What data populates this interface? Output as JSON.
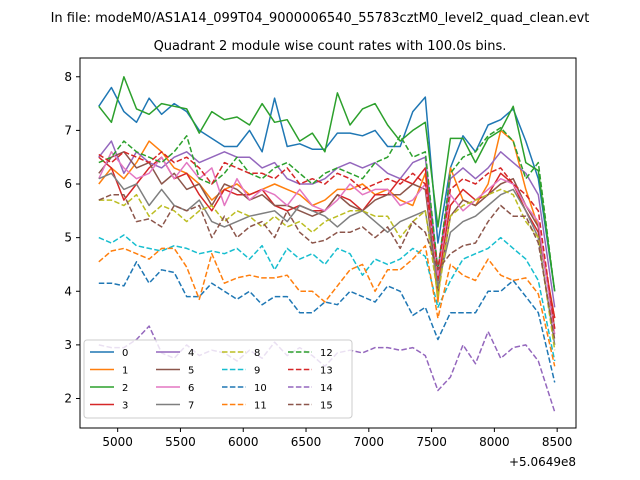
{
  "figure": {
    "suptitle": "In file: modeM0/AS1A14_099T04_9000006540_55783cztM0_level2_quad_clean.evt",
    "offset_label": "+5.0649e8"
  },
  "chart_data": {
    "type": "line",
    "title": "Quadrant 2 module wise count rates with 100.0s bins.",
    "xlabel": "",
    "ylabel": "",
    "xlim": [
      4700,
      8650
    ],
    "ylim": [
      1.45,
      8.35
    ],
    "x_ticks": [
      5000,
      5500,
      6000,
      6500,
      7000,
      7500,
      8000,
      8500
    ],
    "x_tick_labels": [
      "5000",
      "5500",
      "6000",
      "6500",
      "7000",
      "7500",
      "8000",
      "8500"
    ],
    "y_ticks": [
      2,
      3,
      4,
      5,
      6,
      7,
      8
    ],
    "y_tick_labels": [
      "2",
      "3",
      "4",
      "5",
      "6",
      "7",
      "8"
    ],
    "x": [
      4850,
      4950,
      5050,
      5150,
      5250,
      5350,
      5450,
      5550,
      5650,
      5750,
      5850,
      5950,
      6050,
      6150,
      6250,
      6350,
      6450,
      6550,
      6650,
      6750,
      6850,
      6950,
      7050,
      7150,
      7250,
      7350,
      7450,
      7550,
      7650,
      7750,
      7850,
      7950,
      8050,
      8150,
      8250,
      8350,
      8480
    ],
    "legend": {
      "location": "lower-left",
      "ncol": 4
    },
    "series": [
      {
        "name": "0",
        "color": "#1f77b4",
        "dash": "solid",
        "values": [
          7.45,
          7.8,
          7.35,
          7.15,
          7.6,
          7.3,
          7.5,
          7.35,
          7.0,
          6.85,
          6.7,
          6.7,
          7.0,
          6.6,
          7.6,
          6.7,
          6.75,
          6.65,
          6.65,
          6.95,
          6.95,
          6.9,
          7.0,
          6.7,
          6.7,
          7.35,
          7.62,
          4.9,
          6.3,
          6.9,
          6.6,
          7.1,
          7.2,
          7.4,
          6.8,
          6.1,
          4.0
        ]
      },
      {
        "name": "1",
        "color": "#ff7f0e",
        "dash": "solid",
        "values": [
          6.0,
          6.3,
          6.1,
          6.4,
          6.8,
          6.6,
          6.3,
          6.2,
          6.0,
          5.7,
          5.9,
          6.0,
          5.8,
          5.9,
          6.0,
          5.9,
          5.8,
          5.6,
          5.7,
          5.9,
          5.9,
          6.0,
          5.8,
          5.9,
          5.7,
          5.6,
          6.2,
          3.8,
          6.3,
          5.7,
          5.6,
          6.0,
          7.0,
          6.8,
          5.9,
          5.2,
          3.5
        ]
      },
      {
        "name": "2",
        "color": "#2ca02c",
        "dash": "solid",
        "values": [
          7.45,
          7.15,
          8.0,
          7.4,
          7.3,
          7.5,
          7.45,
          7.4,
          6.95,
          7.35,
          7.2,
          7.25,
          7.1,
          7.5,
          7.15,
          7.2,
          6.8,
          6.95,
          6.6,
          7.7,
          7.1,
          7.4,
          7.5,
          7.1,
          6.8,
          7.0,
          7.15,
          5.2,
          6.85,
          6.85,
          6.4,
          6.85,
          7.0,
          7.45,
          6.4,
          6.25,
          4.0
        ]
      },
      {
        "name": "3",
        "color": "#d62728",
        "dash": "solid",
        "values": [
          6.5,
          6.3,
          5.7,
          6.0,
          6.3,
          6.5,
          6.1,
          6.2,
          5.8,
          5.5,
          5.9,
          5.8,
          5.8,
          5.9,
          5.6,
          5.5,
          5.6,
          5.5,
          5.5,
          5.8,
          5.7,
          5.5,
          5.8,
          5.8,
          6.1,
          6.0,
          6.3,
          4.2,
          5.6,
          5.9,
          5.7,
          5.8,
          6.2,
          6.0,
          5.5,
          5.1,
          3.5
        ]
      },
      {
        "name": "4",
        "color": "#9467bd",
        "dash": "solid",
        "values": [
          6.5,
          6.8,
          6.2,
          6.6,
          6.4,
          6.3,
          6.5,
          6.6,
          6.4,
          6.5,
          6.6,
          6.5,
          6.5,
          6.3,
          6.4,
          6.1,
          6.0,
          6.0,
          6.1,
          6.3,
          6.4,
          6.3,
          6.4,
          6.2,
          6.1,
          6.4,
          6.5,
          4.4,
          6.1,
          6.3,
          6.1,
          6.3,
          6.6,
          6.4,
          6.2,
          5.8,
          3.7
        ]
      },
      {
        "name": "5",
        "color": "#8c564b",
        "dash": "solid",
        "values": [
          6.2,
          6.5,
          6.6,
          6.3,
          6.4,
          6.0,
          6.2,
          5.9,
          6.0,
          5.6,
          6.0,
          5.9,
          5.7,
          5.8,
          5.6,
          5.6,
          5.5,
          5.4,
          5.5,
          5.8,
          5.6,
          5.5,
          5.7,
          5.8,
          5.8,
          6.0,
          5.9,
          4.0,
          5.4,
          5.7,
          5.6,
          5.8,
          6.0,
          6.1,
          5.6,
          5.2,
          3.3
        ]
      },
      {
        "name": "6",
        "color": "#e377c2",
        "dash": "solid",
        "values": [
          6.1,
          6.6,
          6.3,
          6.1,
          6.2,
          6.5,
          6.1,
          6.4,
          6.1,
          6.3,
          5.6,
          6.1,
          5.7,
          5.9,
          5.8,
          5.6,
          5.9,
          5.6,
          5.5,
          5.7,
          6.0,
          5.8,
          5.9,
          5.9,
          5.6,
          5.7,
          6.0,
          4.3,
          5.8,
          5.5,
          5.7,
          5.9,
          6.1,
          6.0,
          5.6,
          5.3,
          3.2
        ]
      },
      {
        "name": "7",
        "color": "#7f7f7f",
        "dash": "solid",
        "values": [
          6.1,
          6.2,
          5.9,
          6.0,
          5.6,
          5.9,
          5.6,
          5.5,
          5.7,
          5.3,
          5.2,
          5.3,
          5.4,
          5.45,
          5.5,
          5.3,
          5.6,
          5.5,
          5.4,
          5.2,
          5.4,
          5.5,
          5.3,
          5.1,
          5.3,
          5.4,
          5.5,
          4.1,
          5.1,
          5.3,
          5.4,
          5.6,
          5.8,
          5.9,
          5.5,
          5.0,
          3.0
        ]
      },
      {
        "name": "8",
        "color": "#bcbd22",
        "dash": "dashed",
        "values": [
          5.7,
          5.7,
          5.6,
          5.8,
          5.4,
          5.6,
          5.5,
          5.3,
          5.5,
          5.6,
          5.3,
          5.5,
          5.4,
          5.2,
          5.4,
          5.2,
          5.3,
          5.1,
          5.3,
          5.4,
          5.5,
          5.5,
          5.4,
          5.4,
          5.0,
          5.3,
          5.5,
          3.9,
          5.4,
          5.6,
          5.7,
          5.8,
          5.9,
          5.8,
          5.3,
          5.0,
          2.9
        ]
      },
      {
        "name": "9",
        "color": "#17becf",
        "dash": "dashed",
        "values": [
          5.0,
          4.9,
          5.05,
          4.85,
          4.8,
          4.75,
          4.85,
          4.8,
          4.7,
          4.75,
          4.7,
          4.8,
          4.6,
          4.85,
          4.4,
          4.8,
          4.6,
          4.7,
          4.5,
          4.8,
          4.7,
          4.3,
          4.6,
          4.5,
          4.6,
          4.8,
          4.65,
          3.7,
          4.2,
          4.6,
          4.7,
          4.8,
          5.0,
          4.8,
          4.6,
          4.2,
          2.7
        ]
      },
      {
        "name": "10",
        "color": "#1f77b4",
        "dash": "dashed",
        "values": [
          4.15,
          4.15,
          4.1,
          4.55,
          4.15,
          4.4,
          4.35,
          3.9,
          3.9,
          4.15,
          4.0,
          3.85,
          4.0,
          3.75,
          3.9,
          3.9,
          3.6,
          3.6,
          3.8,
          3.75,
          4.0,
          3.9,
          3.8,
          4.1,
          4.0,
          3.55,
          3.7,
          3.1,
          3.6,
          3.6,
          3.6,
          4.0,
          4.0,
          4.2,
          3.9,
          3.6,
          2.3
        ]
      },
      {
        "name": "11",
        "color": "#ff7f0e",
        "dash": "dashed",
        "values": [
          4.55,
          4.75,
          4.8,
          4.7,
          4.6,
          4.8,
          4.8,
          4.45,
          3.85,
          4.7,
          4.15,
          4.25,
          4.3,
          4.25,
          4.25,
          4.3,
          4.0,
          4.0,
          3.8,
          4.1,
          4.4,
          4.5,
          4.0,
          4.4,
          4.4,
          4.6,
          4.85,
          3.5,
          4.5,
          4.3,
          4.2,
          4.6,
          4.3,
          4.2,
          4.25,
          3.95,
          2.6
        ]
      },
      {
        "name": "12",
        "color": "#2ca02c",
        "dash": "dashed",
        "values": [
          6.4,
          6.5,
          6.8,
          6.6,
          6.5,
          6.4,
          6.6,
          6.9,
          6.1,
          6.0,
          6.2,
          6.5,
          6.2,
          6.1,
          6.3,
          6.4,
          6.2,
          6.0,
          6.2,
          6.3,
          6.2,
          6.1,
          6.4,
          6.5,
          6.9,
          6.5,
          6.6,
          4.4,
          6.2,
          6.5,
          6.6,
          6.9,
          7.05,
          6.8,
          6.1,
          6.4,
          4.0
        ]
      },
      {
        "name": "13",
        "color": "#d62728",
        "dash": "dashed",
        "values": [
          6.55,
          6.4,
          6.6,
          6.5,
          6.4,
          6.6,
          6.4,
          6.5,
          6.3,
          6.0,
          6.4,
          6.3,
          6.2,
          6.2,
          6.1,
          6.3,
          6.0,
          6.1,
          6.0,
          6.2,
          6.1,
          5.9,
          6.0,
          6.1,
          6.0,
          6.2,
          6.0,
          4.4,
          5.9,
          6.1,
          6.0,
          6.2,
          6.3,
          6.0,
          5.8,
          5.5,
          3.3
        ]
      },
      {
        "name": "14",
        "color": "#9467bd",
        "dash": "dashed",
        "values": [
          3.0,
          2.95,
          2.95,
          3.1,
          3.35,
          2.85,
          2.75,
          3.0,
          2.8,
          2.9,
          2.85,
          2.7,
          2.9,
          2.75,
          3.05,
          2.8,
          2.95,
          2.8,
          2.6,
          2.85,
          2.9,
          2.85,
          2.95,
          2.95,
          2.9,
          2.95,
          2.8,
          2.15,
          2.4,
          3.0,
          2.65,
          3.25,
          2.75,
          2.95,
          3.0,
          2.7,
          1.75
        ]
      },
      {
        "name": "15",
        "color": "#8c564b",
        "dash": "dashed",
        "values": [
          5.7,
          5.8,
          5.8,
          5.3,
          5.35,
          5.2,
          5.6,
          5.5,
          5.6,
          5.0,
          5.4,
          5.0,
          5.2,
          5.3,
          5.0,
          5.5,
          5.1,
          4.9,
          4.95,
          5.1,
          5.1,
          5.2,
          5.0,
          5.2,
          4.8,
          5.3,
          5.1,
          4.4,
          4.7,
          4.85,
          4.9,
          5.3,
          5.6,
          5.4,
          5.4,
          4.9,
          3.1
        ]
      }
    ]
  }
}
